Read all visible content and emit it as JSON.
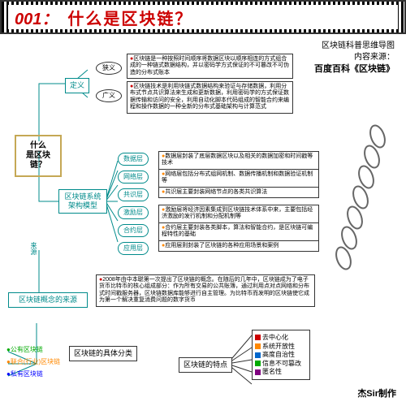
{
  "header": {
    "num": "001：",
    "text": "什么是区块链？"
  },
  "source": {
    "line1": "区块链科普思维导图",
    "line2": "内容来源：",
    "line3": "百度百科《区块链》"
  },
  "root": {
    "line1": "什么",
    "line2": "是区块链？"
  },
  "def": {
    "label": "定义",
    "narrow_label": "狭义",
    "broad_label": "广义",
    "narrow_text": "区块链是一种按照时间顺序将数据区块以顺序相连的方式组合成的一种链式数据结构，并以密码学方式保证的不可篡改不可伪造的分布式账本",
    "broad_text": "区块链技术是利用块链式数据结构来验证与存储数据，利用分布式节点共识算法来生成和更新数据，利用密码学的方式保证数据传输和访问的安全，利用自动化脚本代码组成的智能合约来编程和操作数据的一种全新的分布式基础架构与计算范式"
  },
  "arch": {
    "label": "区块链系统架构模型",
    "layers": [
      {
        "name": "数据层",
        "desc": "数据层封装了底层数据区块以及相关的数据加密和时间戳等技术"
      },
      {
        "name": "网络层",
        "desc": "网络层包括分布式组网机制、数据传播机制和数据验证机制等"
      },
      {
        "name": "共识层",
        "desc": "共识层主要封装网络节点的各类共识算法"
      },
      {
        "name": "激励层",
        "desc": "激励层将经济因素集成到区块链技术体系中来，主要包括经济激励的发行机制和分配机制等"
      },
      {
        "name": "合约层",
        "desc": "合约层主要封装各类脚本，算法和智能合约，是区块链可编程特性的基础"
      },
      {
        "name": "应用层",
        "desc": "应用层则封装了区块链的各种应用场景和案例"
      }
    ]
  },
  "origin": {
    "label": "区块链概念的来源",
    "link": "来源",
    "text": "2008年由中本聪第一次提出了区块链的概念。在随后的几年中，区块链成为了电子货币比特币的核心组成部分：作为所有交易的公共账簿，通过利用点对点网络和分布式时间戳服务器，区块链数据库能够进行自主管理。为比特币而发明的区块链使它成为第一个解决重复消费问题的数字货币"
  },
  "classify": {
    "label": "区块链的具体分类",
    "items": [
      "公有区块链",
      "联合(行业)区块链",
      "私有区块链"
    ],
    "colors": [
      "#0a0",
      "#f80",
      "#00f"
    ]
  },
  "features": {
    "label": "区块链的特点",
    "items": [
      {
        "text": "去中心化",
        "color": "#c00"
      },
      {
        "text": "系统开放性",
        "color": "#f80"
      },
      {
        "text": "高度自治性",
        "color": "#0066cc"
      },
      {
        "text": "信息不可篡改",
        "color": "#0a0"
      },
      {
        "text": "匿名性",
        "color": "#800080"
      }
    ]
  },
  "author": "杰Sir制作"
}
